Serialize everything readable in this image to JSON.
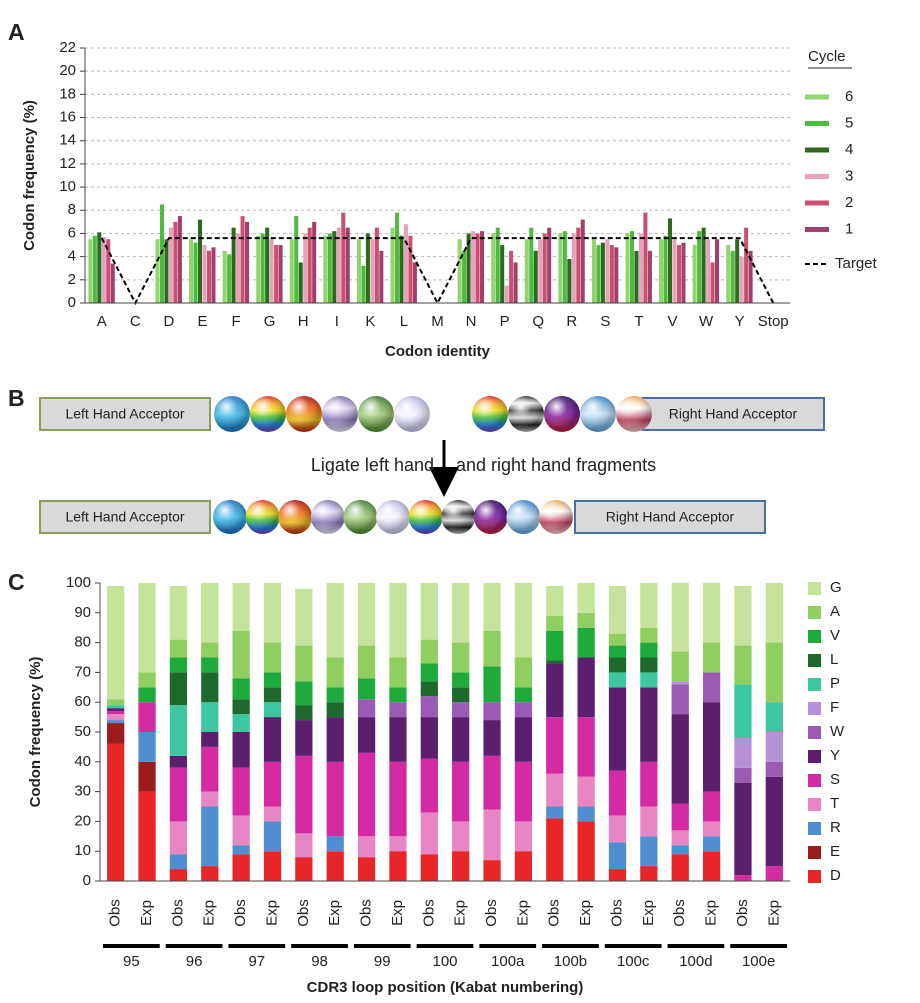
{
  "panel_labels": [
    "A",
    "B",
    "C"
  ],
  "chart_data": [
    {
      "type": "bar",
      "x_label": "Codon identity",
      "y_label": "Codon frequency (%)",
      "legend_title": "Cycle",
      "categories": [
        "A",
        "C",
        "D",
        "E",
        "F",
        "G",
        "H",
        "I",
        "K",
        "L",
        "M",
        "N",
        "P",
        "Q",
        "R",
        "S",
        "T",
        "V",
        "W",
        "Y",
        "Stop"
      ],
      "series": [
        {
          "name": "6",
          "color": "#93d46f",
          "values": [
            5.5,
            0,
            5.5,
            5.5,
            4.5,
            5.8,
            5.5,
            5.8,
            5.5,
            6.5,
            0,
            5.5,
            6.0,
            5.5,
            6.0,
            5.5,
            6.0,
            5.5,
            5.0,
            5.0,
            0
          ]
        },
        {
          "name": "5",
          "color": "#4dbb3e",
          "values": [
            5.8,
            0,
            8.5,
            5.2,
            4.2,
            6.0,
            7.5,
            6.0,
            3.2,
            7.8,
            0,
            4.5,
            6.5,
            6.5,
            6.2,
            5.0,
            6.2,
            5.8,
            6.2,
            4.5,
            0
          ]
        },
        {
          "name": "4",
          "color": "#2b6a1f",
          "values": [
            6.1,
            0,
            5.5,
            7.2,
            6.5,
            6.5,
            3.5,
            6.2,
            6.0,
            5.8,
            0,
            6.0,
            5.0,
            4.5,
            3.8,
            5.2,
            4.5,
            7.3,
            6.5,
            5.5,
            0
          ]
        },
        {
          "name": "3",
          "color": "#e8a2bc",
          "values": [
            5.7,
            0,
            6.5,
            5.0,
            6.0,
            5.5,
            6.0,
            6.5,
            5.5,
            6.8,
            0,
            6.2,
            1.5,
            5.5,
            6.0,
            5.5,
            6.0,
            5.5,
            5.5,
            4.0,
            0
          ]
        },
        {
          "name": "2",
          "color": "#c9506f",
          "values": [
            5.5,
            0,
            7.0,
            4.5,
            7.5,
            5.0,
            6.5,
            7.8,
            6.5,
            5.8,
            0,
            6.0,
            4.5,
            6.0,
            6.5,
            5.0,
            7.8,
            5.0,
            3.5,
            6.5,
            0
          ]
        },
        {
          "name": "1",
          "color": "#a13f6f",
          "values": [
            3.4,
            0,
            7.5,
            4.8,
            7.0,
            5.0,
            7.0,
            6.5,
            4.5,
            3.5,
            0,
            6.2,
            3.5,
            6.5,
            7.2,
            4.8,
            4.5,
            5.2,
            5.5,
            4.5,
            0
          ]
        },
        {
          "name": "Target",
          "type": "line",
          "dash": true,
          "color": "#000000",
          "values": [
            5.6,
            0,
            5.6,
            5.6,
            5.6,
            5.6,
            5.6,
            5.6,
            5.6,
            5.6,
            0,
            5.6,
            5.6,
            5.6,
            5.6,
            5.6,
            5.6,
            5.6,
            5.6,
            5.6,
            0
          ]
        }
      ],
      "ylim": [
        0,
        22
      ],
      "yticks": [
        0,
        2,
        4,
        6,
        8,
        10,
        12,
        14,
        16,
        18,
        20,
        22
      ],
      "grid": true
    },
    {
      "type": "stacked_bar",
      "x_label": "CDR3 loop position (Kabat numbering)",
      "y_label": "Codon frequency (%)",
      "categories": [
        "Obs",
        "Exp",
        "Obs",
        "Exp",
        "Obs",
        "Exp",
        "Obs",
        "Exp",
        "Obs",
        "Exp",
        "Obs",
        "Exp",
        "Obs",
        "Exp",
        "Obs",
        "Exp",
        "Obs",
        "Exp",
        "Obs",
        "Exp",
        "Obs",
        "Exp"
      ],
      "groups": [
        "95",
        "96",
        "97",
        "98",
        "99",
        "100",
        "100a",
        "100b",
        "100c",
        "100d",
        "100e"
      ],
      "series": [
        {
          "name": "G",
          "color": "#c6e39c",
          "values": [
            38,
            30,
            18,
            20,
            16,
            20,
            19,
            25,
            21,
            25,
            19,
            20,
            16,
            25,
            10,
            10,
            16,
            15,
            23,
            20,
            20,
            20
          ]
        },
        {
          "name": "A",
          "color": "#8fcf60",
          "values": [
            2,
            5,
            6,
            5,
            16,
            10,
            12,
            10,
            11,
            10,
            8,
            10,
            12,
            10,
            5,
            5,
            4,
            5,
            10,
            10,
            13,
            20
          ]
        },
        {
          "name": "V",
          "color": "#1faa3c",
          "values": [
            0,
            5,
            5,
            5,
            7,
            5,
            8,
            5,
            7,
            5,
            6,
            5,
            12,
            5,
            10,
            10,
            4,
            5,
            0,
            0,
            0,
            0
          ]
        },
        {
          "name": "L",
          "color": "#1e6a2c",
          "values": [
            0,
            0,
            11,
            10,
            5,
            5,
            5,
            5,
            0,
            0,
            5,
            5,
            0,
            0,
            1,
            0,
            5,
            5,
            0,
            0,
            0,
            0
          ]
        },
        {
          "name": "P",
          "color": "#3cc7a0",
          "values": [
            1,
            0,
            17,
            10,
            6,
            5,
            0,
            0,
            0,
            0,
            0,
            0,
            0,
            0,
            0,
            0,
            5,
            5,
            0,
            0,
            18,
            10
          ]
        },
        {
          "name": "F",
          "color": "#b690d8",
          "values": [
            0,
            0,
            0,
            0,
            0,
            0,
            0,
            0,
            0,
            0,
            0,
            0,
            0,
            0,
            0,
            0,
            0,
            0,
            1,
            0,
            10,
            10
          ]
        },
        {
          "name": "W",
          "color": "#9b5bb5",
          "values": [
            0,
            0,
            0,
            0,
            0,
            0,
            0,
            0,
            6,
            5,
            7,
            5,
            6,
            5,
            0,
            0,
            0,
            0,
            10,
            10,
            5,
            5
          ]
        },
        {
          "name": "Y",
          "color": "#5b1f6e",
          "values": [
            1,
            0,
            4,
            5,
            12,
            15,
            12,
            15,
            12,
            15,
            14,
            15,
            12,
            15,
            18,
            20,
            28,
            25,
            30,
            30,
            31,
            30
          ]
        },
        {
          "name": "S",
          "color": "#d42ba5",
          "values": [
            1,
            10,
            18,
            15,
            16,
            15,
            26,
            25,
            28,
            25,
            18,
            20,
            18,
            20,
            19,
            20,
            15,
            15,
            9,
            10,
            2,
            5
          ]
        },
        {
          "name": "T",
          "color": "#e886c4",
          "values": [
            2,
            0,
            11,
            5,
            10,
            5,
            8,
            0,
            7,
            5,
            14,
            10,
            17,
            10,
            11,
            10,
            9,
            10,
            5,
            5,
            0,
            0
          ]
        },
        {
          "name": "R",
          "color": "#4f8fd1",
          "values": [
            1,
            10,
            5,
            20,
            3,
            10,
            0,
            5,
            0,
            0,
            0,
            0,
            0,
            0,
            4,
            5,
            9,
            10,
            3,
            5,
            0,
            0
          ]
        },
        {
          "name": "E",
          "color": "#9b1c1c",
          "values": [
            7,
            10,
            0,
            0,
            0,
            0,
            0,
            0,
            0,
            0,
            0,
            0,
            0,
            0,
            0,
            0,
            0,
            0,
            0,
            0,
            0,
            0
          ]
        },
        {
          "name": "D",
          "color": "#e8262a",
          "values": [
            46,
            30,
            4,
            5,
            9,
            10,
            8,
            10,
            8,
            10,
            9,
            10,
            7,
            10,
            21,
            20,
            4,
            5,
            9,
            10,
            0,
            0
          ]
        }
      ],
      "ylim": [
        0,
        100
      ],
      "yticks": [
        0,
        10,
        20,
        30,
        40,
        50,
        60,
        70,
        80,
        90,
        100
      ],
      "grid": false
    }
  ],
  "diagram": {
    "left_acceptor": "Left Hand Acceptor",
    "right_acceptor": "Right Hand Acceptor",
    "ligate_left": "Ligate left hand",
    "ligate_right": "and right hand fragments"
  }
}
